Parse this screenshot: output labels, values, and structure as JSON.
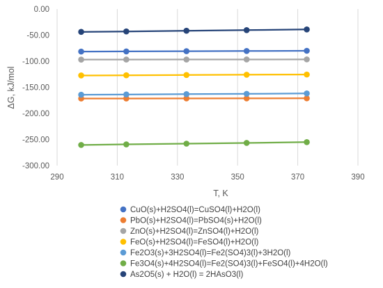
{
  "chart_data": {
    "type": "line",
    "title": "",
    "xlabel": "T, K",
    "ylabel": "ΔG, kJ/mol",
    "xlim": [
      290,
      390
    ],
    "ylim": [
      -300,
      0
    ],
    "xticks": [
      290,
      310,
      330,
      350,
      370,
      390
    ],
    "yticks": [
      0,
      -50,
      -100,
      -150,
      -200,
      -250,
      -300
    ],
    "ytick_labels": [
      "0.00",
      "-50.00",
      "-100.00",
      "-150.00",
      "-200.00",
      "-250.00",
      "-300.00"
    ],
    "grid": "vertical",
    "legend_position": "bottom",
    "x": [
      298,
      313,
      333,
      353,
      373
    ],
    "series": [
      {
        "name": "CuO(s)+H2SO4(l)=CuSO4(l)+H2O(l)",
        "color": "#4472C4",
        "values": [
          -81.5,
          -81.2,
          -80.8,
          -80.4,
          -80.0
        ]
      },
      {
        "name": "PbO(s)+H2SO4(l)=PbSO4(s)+H2O(l)",
        "color": "#ED7D31",
        "values": [
          -171.5,
          -171.4,
          -171.3,
          -171.2,
          -171.1
        ]
      },
      {
        "name": "ZnO(s)+H2SO4(l)=ZnSO4(l)+H2O(l)",
        "color": "#A5A5A5",
        "values": [
          -96.9,
          -96.8,
          -96.7,
          -96.6,
          -96.5
        ]
      },
      {
        "name": "FeO(s)+H2SO4(l)=FeSO4(l)+H2O(l)",
        "color": "#FFC000",
        "values": [
          -127.3,
          -126.9,
          -126.4,
          -125.9,
          -125.5
        ]
      },
      {
        "name": "Fe2O3(s)+3H2SO4(l)=Fe2(SO4)3(l)+3H2O(l)",
        "color": "#5B9BD5",
        "values": [
          -164.3,
          -163.8,
          -163.1,
          -162.5,
          -161.8
        ]
      },
      {
        "name": "Fe3O4(s)+4H2SO4(l)=Fe2(SO4)3(l)+FeSO4(l)+4H2O(l)",
        "color": "#70AD47",
        "values": [
          -260.5,
          -259.4,
          -258.0,
          -256.6,
          -255.1
        ]
      },
      {
        "name": "As2O5(s) + H2O(l) = 2HAsO3(l)",
        "color": "#264478",
        "values": [
          -43.8,
          -42.9,
          -41.6,
          -40.4,
          -39.1
        ]
      }
    ]
  }
}
